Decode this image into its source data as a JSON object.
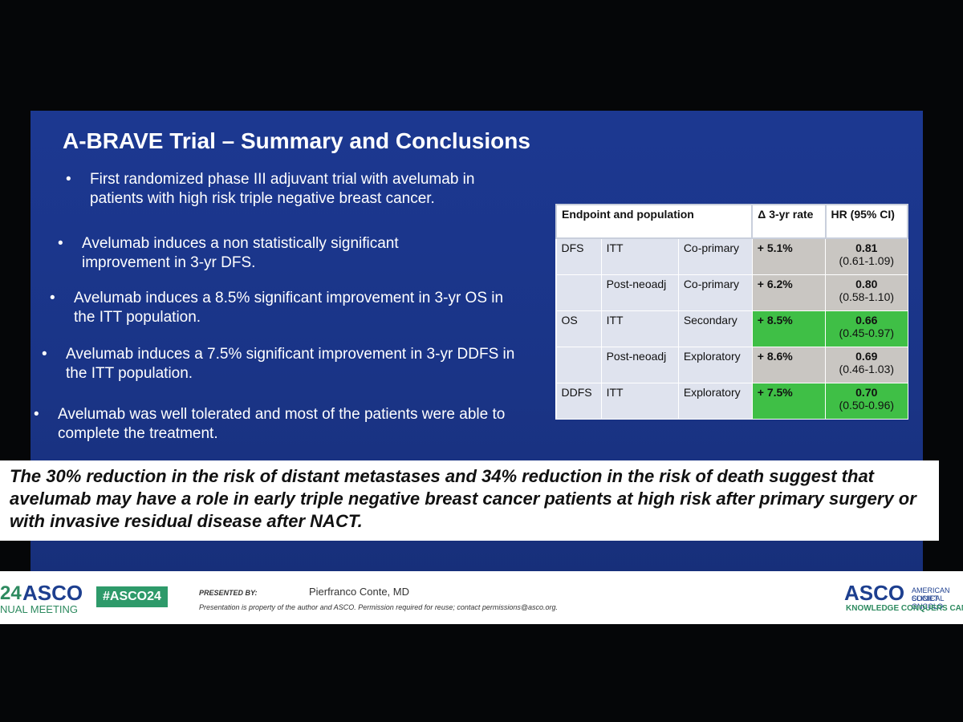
{
  "slide": {
    "title": "A-BRAVE Trial – Summary and Conclusions",
    "bullets": [
      "First randomized phase III adjuvant trial with avelumab in patients with high risk triple negative breast cancer.",
      "Avelumab induces a non statistically significant improvement in 3-yr DFS.",
      "Avelumab induces a 8.5% significant improvement in 3-yr OS in the ITT population.",
      "Avelumab induces a 7.5% significant improvement in 3-yr DDFS in the ITT population.",
      "Avelumab was well tolerated and most of the patients were able to complete the treatment."
    ],
    "table": {
      "header": [
        "Endpoint and population",
        "Δ 3-yr rate",
        "HR (95% CI)"
      ],
      "rows": [
        [
          "DFS",
          "ITT",
          "Co-primary",
          "+ 5.1%",
          "0.81",
          "(0.61-1.09)"
        ],
        [
          "",
          "Post-neoadj",
          "Co-primary",
          "+ 6.2%",
          "0.80",
          "(0.58-1.10)"
        ],
        [
          "OS",
          "ITT",
          "Secondary",
          "+ 8.5%",
          "0.66",
          "(0.45-0.97)"
        ],
        [
          "",
          "Post-neoadj",
          "Exploratory",
          "+ 8.6%",
          "0.69",
          "(0.46-1.03)"
        ],
        [
          "DDFS",
          "ITT",
          "Exploratory",
          "+ 7.5%",
          "0.70",
          "(0.50-0.96)"
        ]
      ]
    },
    "conclusion": "The 30% reduction in the risk of distant metastases and 34% reduction in the risk of death suggest that avelumab may have a role in early triple negative breast cancer patients at high risk after primary surgery or with invasive residual disease after NACT."
  },
  "footer": {
    "meeting_year": "24",
    "meeting_brand": "ASCO",
    "meeting_name": "NUAL MEETING",
    "hashtag": "#ASCO24",
    "presented_by": "PRESENTED BY:",
    "presenter": "Pierfranco Conte, MD",
    "notice": "Presentation is property of the author and ASCO. Permission required for reuse; contact permissions@asco.org.",
    "logo": "ASCO",
    "society_line1": "AMERICAN SOCIET",
    "society_line2": "CLINICAL ONCOLO",
    "tagline": "KNOWLEDGE CONQUERS CAN"
  }
}
